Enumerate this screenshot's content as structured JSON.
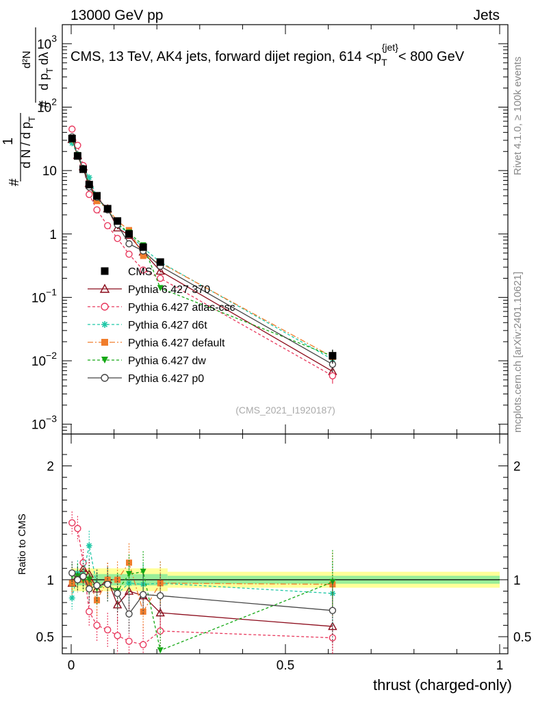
{
  "header": {
    "left": "13000 GeV pp",
    "right": "Jets"
  },
  "side_texts": {
    "rivet": "Rivet 4.1.0, ≥ 100k events",
    "mcplots": "mcplots.cern.ch [arXiv:2401.10621]"
  },
  "colors": {
    "CMS": "#000000",
    "p370": "#8b0a1a",
    "atlas": "#e8375c",
    "d6t": "#1fc7a6",
    "default": "#f07d2c",
    "dw": "#14a814",
    "p0": "#444444"
  },
  "chart_data": [
    {
      "type": "line",
      "panel": "main",
      "title": "CMS, 13 TeV, AK4 jets, forward dijet region, 614 <p_T^{jet}< 800 GeV",
      "title_parts": {
        "main": "CMS, 13 TeV, AK4 jets, forward dijet region, 614 <p",
        "sub": "T",
        "sup": "{jet}",
        "tail": "< 800 GeV"
      },
      "ylabel": "1/dN/dpT dN/dpT dλ",
      "ylabel_parts": {
        "hash": "#",
        "one": "1",
        "den": "d N / d p",
        "sub_T": "T",
        "num2": "d²N",
        "den2": "d p",
        "dl": "dλ"
      },
      "watermark": "(CMS_2021_I1920187)",
      "yscale": "log",
      "ylim": [
        0.0007,
        2000
      ],
      "xlim": [
        -0.02,
        1.0
      ],
      "y_ticks": [
        {
          "v": 0.001,
          "base": "10",
          "exp": "−3"
        },
        {
          "v": 0.01,
          "base": "10",
          "exp": "−2"
        },
        {
          "v": 0.1,
          "base": "10",
          "exp": "−1"
        },
        {
          "v": 1,
          "base": "1",
          "exp": ""
        },
        {
          "v": 10,
          "base": "10",
          "exp": ""
        },
        {
          "v": 100,
          "base": "10",
          "exp": "2"
        },
        {
          "v": 1000,
          "base": "10",
          "exp": "3"
        }
      ],
      "x": [
        0.002,
        0.015,
        0.028,
        0.042,
        0.06,
        0.085,
        0.108,
        0.135,
        0.168,
        0.208,
        0.61
      ],
      "series": [
        {
          "name": "CMS",
          "key": "CMS",
          "marker": "square",
          "values": [
            32,
            17,
            10.5,
            6,
            4,
            2.5,
            1.6,
            1.0,
            0.62,
            0.36,
            0.012
          ]
        },
        {
          "name": "Pythia 6.427 370",
          "key": "p370",
          "marker": "triangle-open",
          "dash": "",
          "values": [
            31,
            17.5,
            11.5,
            6.3,
            3.7,
            2.5,
            1.25,
            0.95,
            0.52,
            0.26,
            0.0068
          ]
        },
        {
          "name": "Pythia 6.427 atlas-csc",
          "key": "atlas",
          "marker": "circle-open",
          "dash": "4,3",
          "values": [
            45,
            25,
            12,
            4.2,
            2.4,
            1.35,
            0.85,
            0.48,
            0.27,
            0.2,
            0.0058
          ]
        },
        {
          "name": "Pythia 6.427 d6t",
          "key": "d6t",
          "marker": "star",
          "dash": "4,3",
          "values": [
            27,
            18,
            11,
            7.8,
            3.8,
            2.4,
            1.4,
            1.0,
            0.6,
            0.36,
            0.0105
          ]
        },
        {
          "name": "Pythia 6.427 default",
          "key": "default",
          "marker": "square",
          "dash": "8,3,2,3",
          "values": [
            31,
            17,
            10.5,
            5.8,
            3.3,
            2.5,
            1.6,
            1.15,
            0.45,
            0.35,
            0.0115
          ]
        },
        {
          "name": "Pythia 6.427 dw",
          "key": "dw",
          "marker": "triangle-down",
          "dash": "4,3",
          "values": [
            33,
            17.5,
            10.5,
            6.0,
            3.7,
            2.4,
            1.45,
            1.05,
            0.66,
            0.14,
            0.0118
          ]
        },
        {
          "name": "Pythia 6.427 p0",
          "key": "p0",
          "marker": "circle-open",
          "dash": "",
          "values": [
            34,
            17,
            10.8,
            5.5,
            3.8,
            2.4,
            1.4,
            0.7,
            0.54,
            0.31,
            0.0088
          ]
        }
      ]
    },
    {
      "type": "line",
      "panel": "ratio",
      "ylabel": "Ratio to CMS",
      "xlabel": "thrust (charged-only)",
      "ylim": [
        0.35,
        2.28
      ],
      "xlim": [
        -0.02,
        1.0
      ],
      "y_ticks": [
        0.5,
        1,
        2
      ],
      "x_ticks": [
        0,
        0.5,
        1
      ],
      "x_tick_labels": [
        "0",
        "0.5",
        "1"
      ],
      "bands": [
        {
          "x0": 0.0,
          "x1": 0.225,
          "inner": 0.05,
          "outer": 0.1
        },
        {
          "x0": 0.225,
          "x1": 1.0,
          "inner": 0.035,
          "outer": 0.07
        }
      ],
      "x": [
        0.002,
        0.015,
        0.028,
        0.042,
        0.06,
        0.085,
        0.108,
        0.135,
        0.168,
        0.208,
        0.61
      ],
      "series": [
        {
          "key": "p370",
          "values": [
            0.97,
            1.03,
            1.1,
            1.05,
            0.92,
            1.0,
            0.78,
            0.9,
            0.86,
            0.71,
            0.59
          ]
        },
        {
          "key": "atlas",
          "values": [
            1.5,
            1.45,
            1.15,
            0.72,
            0.6,
            0.56,
            0.51,
            0.46,
            0.43,
            0.55,
            0.49
          ]
        },
        {
          "key": "d6t",
          "values": [
            0.84,
            1.06,
            1.05,
            1.3,
            0.95,
            0.96,
            0.88,
            0.97,
            0.96,
            0.97,
            0.88
          ]
        },
        {
          "key": "default",
          "values": [
            0.97,
            1.0,
            1.0,
            0.97,
            0.82,
            1.0,
            1.0,
            1.15,
            0.72,
            0.97,
            0.96
          ]
        },
        {
          "key": "dw",
          "values": [
            1.04,
            1.03,
            1.0,
            1.0,
            0.92,
            0.96,
            0.9,
            1.05,
            1.07,
            0.38,
            0.98
          ]
        },
        {
          "key": "p0",
          "values": [
            1.06,
            1.0,
            1.03,
            0.92,
            0.95,
            0.96,
            0.88,
            0.7,
            0.87,
            0.86,
            0.73
          ]
        }
      ]
    }
  ]
}
